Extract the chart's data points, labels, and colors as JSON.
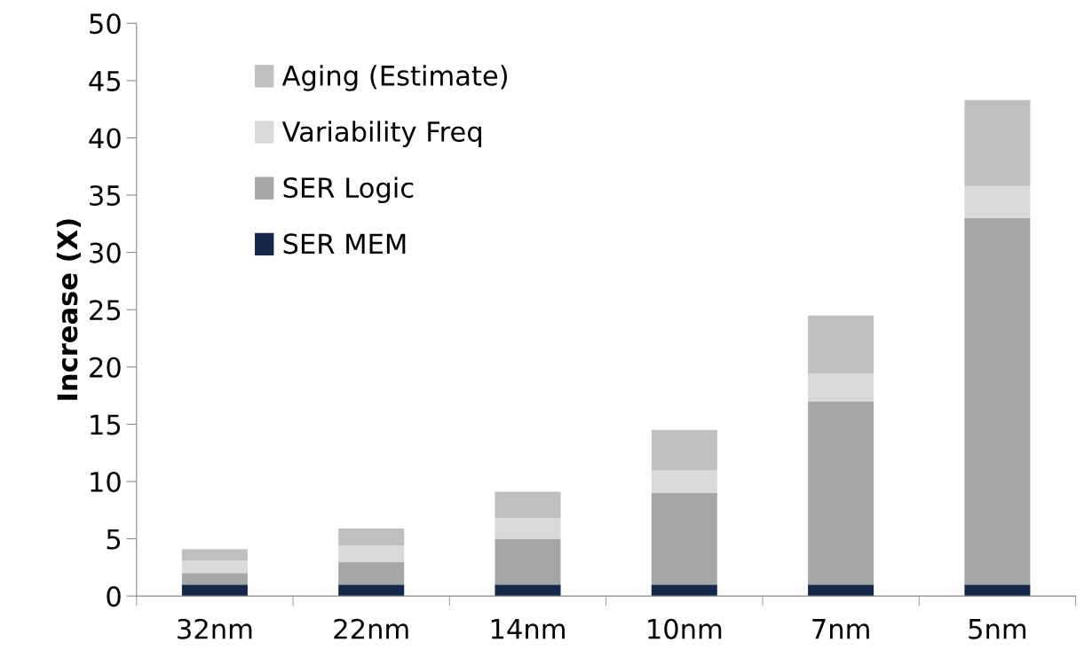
{
  "chart_data": {
    "type": "bar",
    "stacked": true,
    "ylabel": "Increase (X)",
    "categories": [
      "32nm",
      "22nm",
      "14nm",
      "10nm",
      "7nm",
      "5nm"
    ],
    "series": [
      {
        "name": "SER MEM",
        "color": "#14284b",
        "values": [
          1,
          1,
          1,
          1,
          1,
          1
        ]
      },
      {
        "name": "SER Logic",
        "color": "#a6a6a6",
        "values": [
          1,
          2,
          4,
          8,
          16,
          32
        ]
      },
      {
        "name": "Variability Freq",
        "color": "#d9d9d9",
        "values": [
          1.1,
          1.4,
          1.8,
          2,
          2.4,
          2.8
        ]
      },
      {
        "name": "Aging (Estimate)",
        "color": "#bfbfbf",
        "values": [
          1,
          1.5,
          2.3,
          3.5,
          5.1,
          7.5
        ]
      }
    ],
    "ylim": [
      0,
      50
    ],
    "yticks": [
      0,
      5,
      10,
      15,
      20,
      25,
      30,
      35,
      40,
      45,
      50
    ],
    "grid": false,
    "legend": "top left"
  }
}
